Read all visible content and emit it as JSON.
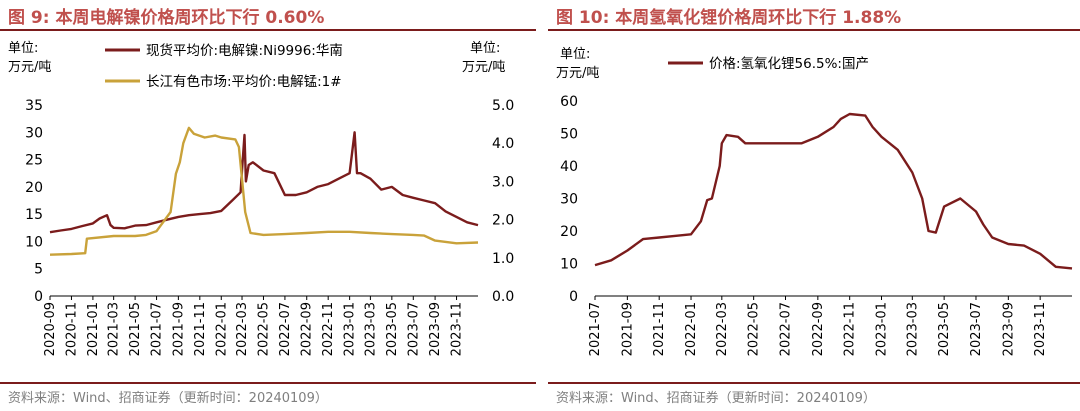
{
  "colors": {
    "title": "#c0504d",
    "nickel": "#7b1c1c",
    "manganese": "#c9a23a",
    "lithium": "#7b1c1c",
    "source": "#7f7f7f"
  },
  "left": {
    "title": "图 9:  本周电解镍价格周环比下行 0.60%",
    "source": "资料来源：Wind、招商证券（更新时间：20240109）",
    "left_unit": [
      "单位:",
      "万元/吨"
    ],
    "right_unit": [
      "单位:",
      "万元/吨"
    ]
  },
  "right": {
    "title": "图 10:  本周氢氧化锂价格周环比下行 1.88%",
    "source": "资料来源：Wind、招商证券（更新时间：20240109）",
    "unit": [
      "单位:",
      "万元/吨"
    ]
  },
  "chart_data": [
    {
      "type": "line",
      "x_ticks": [
        "2020-09",
        "2020-11",
        "2021-01",
        "2021-03",
        "2021-05",
        "2021-07",
        "2021-09",
        "2021-11",
        "2022-01",
        "2022-03",
        "2022-05",
        "2022-07",
        "2022-09",
        "2022-11",
        "2023-01",
        "2023-03",
        "2023-05",
        "2023-07",
        "2023-09",
        "2023-11"
      ],
      "y_left_ticks": [
        "0",
        "5",
        "10",
        "15",
        "20",
        "25",
        "30",
        "35"
      ],
      "y_right_ticks": [
        "0.0",
        "1.0",
        "2.0",
        "3.0",
        "4.0",
        "5.0"
      ],
      "ylim_left": [
        0,
        35
      ],
      "ylim_right": [
        0,
        5
      ],
      "legend_position": "top",
      "series": [
        {
          "name": "现货平均价:电解镍:Ni9996:华南",
          "axis": "left",
          "points": [
            [
              "2020-09",
              11.7
            ],
            [
              "2020-10",
              12.0
            ],
            [
              "2020-11",
              12.3
            ],
            [
              "2020-12",
              12.8
            ],
            [
              "2021-01",
              13.3
            ],
            [
              "2021-01-20",
              14.2
            ],
            [
              "2021-02-10",
              14.8
            ],
            [
              "2021-02-20",
              13.0
            ],
            [
              "2021-03",
              12.5
            ],
            [
              "2021-04",
              12.4
            ],
            [
              "2021-05",
              12.9
            ],
            [
              "2021-06",
              13.0
            ],
            [
              "2021-07",
              13.5
            ],
            [
              "2021-08",
              14.0
            ],
            [
              "2021-09",
              14.5
            ],
            [
              "2021-10",
              14.8
            ],
            [
              "2021-11",
              15.0
            ],
            [
              "2021-12",
              15.2
            ],
            [
              "2022-01",
              15.6
            ],
            [
              "2022-02",
              17.5
            ],
            [
              "2022-02-25",
              19.0
            ],
            [
              "2022-03-01",
              23.0
            ],
            [
              "2022-03-08",
              29.5
            ],
            [
              "2022-03-12",
              21.0
            ],
            [
              "2022-03-20",
              24.0
            ],
            [
              "2022-04",
              24.5
            ],
            [
              "2022-05",
              23.0
            ],
            [
              "2022-06",
              22.5
            ],
            [
              "2022-07",
              18.5
            ],
            [
              "2022-08",
              18.5
            ],
            [
              "2022-09",
              19.0
            ],
            [
              "2022-10",
              20.0
            ],
            [
              "2022-11",
              20.5
            ],
            [
              "2022-12",
              21.5
            ],
            [
              "2023-01",
              22.5
            ],
            [
              "2023-01-15",
              30.0
            ],
            [
              "2023-01-22",
              22.5
            ],
            [
              "2023-02",
              22.5
            ],
            [
              "2023-03",
              21.5
            ],
            [
              "2023-04",
              19.5
            ],
            [
              "2023-05",
              20.0
            ],
            [
              "2023-06",
              18.5
            ],
            [
              "2023-07",
              18.0
            ],
            [
              "2023-08",
              17.5
            ],
            [
              "2023-09",
              17.0
            ],
            [
              "2023-10",
              15.5
            ],
            [
              "2023-11",
              14.5
            ],
            [
              "2023-12",
              13.5
            ],
            [
              "2024-01",
              13.0
            ]
          ]
        },
        {
          "name": "长江有色市场:平均价:电解锰:1#",
          "axis": "right",
          "points": [
            [
              "2020-09",
              1.08
            ],
            [
              "2020-11",
              1.1
            ],
            [
              "2020-12-10",
              1.12
            ],
            [
              "2020-12-15",
              1.5
            ],
            [
              "2021-03",
              1.57
            ],
            [
              "2021-05",
              1.57
            ],
            [
              "2021-06",
              1.6
            ],
            [
              "2021-07",
              1.7
            ],
            [
              "2021-08-10",
              2.2
            ],
            [
              "2021-08-25",
              3.2
            ],
            [
              "2021-09-05",
              3.5
            ],
            [
              "2021-09-15",
              4.0
            ],
            [
              "2021-10-01",
              4.4
            ],
            [
              "2021-10-15",
              4.25
            ],
            [
              "2021-11-15",
              4.15
            ],
            [
              "2021-12-15",
              4.2
            ],
            [
              "2022-01",
              4.15
            ],
            [
              "2022-02-10",
              4.1
            ],
            [
              "2022-02-20",
              3.9
            ],
            [
              "2022-03-10",
              2.2
            ],
            [
              "2022-03-25",
              1.65
            ],
            [
              "2022-05",
              1.6
            ],
            [
              "2022-07",
              1.62
            ],
            [
              "2022-09",
              1.65
            ],
            [
              "2022-11",
              1.68
            ],
            [
              "2023-01",
              1.68
            ],
            [
              "2023-03",
              1.65
            ],
            [
              "2023-05",
              1.62
            ],
            [
              "2023-07",
              1.6
            ],
            [
              "2023-08",
              1.58
            ],
            [
              "2023-09",
              1.45
            ],
            [
              "2023-11",
              1.38
            ],
            [
              "2024-01",
              1.4
            ]
          ]
        }
      ]
    },
    {
      "type": "line",
      "x_ticks": [
        "2021-07",
        "2021-09",
        "2021-11",
        "2022-01",
        "2022-03",
        "2022-05",
        "2022-07",
        "2022-09",
        "2022-11",
        "2023-01",
        "2023-03",
        "2023-05",
        "2023-07",
        "2023-09",
        "2023-11"
      ],
      "y_ticks": [
        "0",
        "10",
        "20",
        "30",
        "40",
        "50",
        "60"
      ],
      "ylim": [
        0,
        60
      ],
      "legend_position": "top",
      "series": [
        {
          "name": "价格:氢氧化锂56.5%:国产",
          "points": [
            [
              "2021-07",
              9.5
            ],
            [
              "2021-08",
              11.0
            ],
            [
              "2021-09",
              14.0
            ],
            [
              "2021-10",
              17.5
            ],
            [
              "2021-11",
              18.0
            ],
            [
              "2021-12",
              18.5
            ],
            [
              "2022-01",
              19.0
            ],
            [
              "2022-01-20",
              23.0
            ],
            [
              "2022-02",
              29.5
            ],
            [
              "2022-02-10",
              30.0
            ],
            [
              "2022-02-25",
              40.0
            ],
            [
              "2022-03",
              47.0
            ],
            [
              "2022-03-10",
              49.5
            ],
            [
              "2022-04",
              49.0
            ],
            [
              "2022-04-15",
              47.0
            ],
            [
              "2022-05",
              47.0
            ],
            [
              "2022-06",
              47.0
            ],
            [
              "2022-07",
              47.0
            ],
            [
              "2022-08",
              47.0
            ],
            [
              "2022-09",
              49.0
            ],
            [
              "2022-10",
              52.0
            ],
            [
              "2022-10-15",
              54.5
            ],
            [
              "2022-11",
              56.0
            ],
            [
              "2022-12",
              55.5
            ],
            [
              "2022-12-15",
              52.0
            ],
            [
              "2023-01",
              49.0
            ],
            [
              "2023-02",
              45.0
            ],
            [
              "2023-03",
              38.0
            ],
            [
              "2023-03-20",
              30.0
            ],
            [
              "2023-04",
              20.0
            ],
            [
              "2023-04-15",
              19.5
            ],
            [
              "2023-05",
              27.5
            ],
            [
              "2023-06",
              30.0
            ],
            [
              "2023-07",
              26.0
            ],
            [
              "2023-07-15",
              22.0
            ],
            [
              "2023-08",
              18.0
            ],
            [
              "2023-09",
              16.0
            ],
            [
              "2023-10",
              15.5
            ],
            [
              "2023-11",
              13.0
            ],
            [
              "2023-12",
              9.0
            ],
            [
              "2024-01",
              8.5
            ]
          ]
        }
      ]
    }
  ]
}
